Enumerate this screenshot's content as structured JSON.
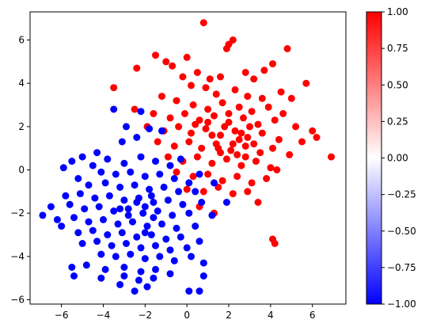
{
  "chart_data": {
    "type": "scatter",
    "title": "",
    "xlabel": "",
    "ylabel": "",
    "xlim": [
      -7.5,
      7.6
    ],
    "ylim": [
      -6.2,
      7.3
    ],
    "x_ticks": [
      -6,
      -4,
      -2,
      0,
      2,
      4,
      6
    ],
    "y_ticks": [
      -6,
      -4,
      -2,
      0,
      2,
      4,
      6
    ],
    "x_tick_labels": [
      "−6",
      "−4",
      "−2",
      "0",
      "2",
      "4",
      "6"
    ],
    "y_tick_labels": [
      "−6",
      "−4",
      "−2",
      "0",
      "2",
      "4",
      "6"
    ],
    "grid": false,
    "colormap": "bwr",
    "colorbar": {
      "range": [
        -1.0,
        1.0
      ],
      "ticks": [
        1.0,
        0.75,
        0.5,
        0.25,
        0.0,
        -0.25,
        -0.5,
        -0.75,
        -1.0
      ],
      "tick_labels": [
        "1.00",
        "0.75",
        "0.50",
        "0.25",
        "0.00",
        "−0.25",
        "−0.50",
        "−0.75",
        "−1.00"
      ],
      "colors": [
        "#0000ff",
        "#ffffff",
        "#ff0000"
      ]
    },
    "series": [
      {
        "class_value": 1,
        "color": "#ff0000",
        "points": [
          [
            0.8,
            6.8
          ],
          [
            2.2,
            6.0
          ],
          [
            2.0,
            5.8
          ],
          [
            1.9,
            5.6
          ],
          [
            -1.5,
            5.3
          ],
          [
            -1.0,
            5.0
          ],
          [
            -0.7,
            4.8
          ],
          [
            0.0,
            5.2
          ],
          [
            0.5,
            4.5
          ],
          [
            1.1,
            4.2
          ],
          [
            1.6,
            4.3
          ],
          [
            2.8,
            4.5
          ],
          [
            3.2,
            4.2
          ],
          [
            4.8,
            5.6
          ],
          [
            4.1,
            4.9
          ],
          [
            3.7,
            4.6
          ],
          [
            -2.4,
            4.7
          ],
          [
            -0.2,
            4.3
          ],
          [
            0.2,
            3.9
          ],
          [
            0.9,
            3.8
          ],
          [
            1.4,
            3.5
          ],
          [
            2.3,
            3.7
          ],
          [
            2.9,
            3.4
          ],
          [
            3.6,
            3.3
          ],
          [
            4.5,
            3.6
          ],
          [
            5.7,
            4.0
          ],
          [
            5.0,
            3.3
          ],
          [
            -3.5,
            3.8
          ],
          [
            -1.2,
            3.4
          ],
          [
            -0.5,
            3.2
          ],
          [
            0.3,
            3.0
          ],
          [
            1.0,
            2.8
          ],
          [
            1.7,
            3.1
          ],
          [
            2.5,
            2.9
          ],
          [
            3.1,
            2.7
          ],
          [
            3.9,
            2.9
          ],
          [
            4.6,
            2.6
          ],
          [
            -2.5,
            2.8
          ],
          [
            -1.6,
            2.6
          ],
          [
            -0.8,
            2.4
          ],
          [
            -0.1,
            2.6
          ],
          [
            0.6,
            2.3
          ],
          [
            1.3,
            2.5
          ],
          [
            2.0,
            2.2
          ],
          [
            2.7,
            2.4
          ],
          [
            3.4,
            2.1
          ],
          [
            4.2,
            2.3
          ],
          [
            5.2,
            2.0
          ],
          [
            6.0,
            1.8
          ],
          [
            -1.9,
            2.0
          ],
          [
            -1.1,
            1.8
          ],
          [
            -0.4,
            2.0
          ],
          [
            0.2,
            1.7
          ],
          [
            0.9,
            1.9
          ],
          [
            1.6,
            1.6
          ],
          [
            2.3,
            1.8
          ],
          [
            2.9,
            1.5
          ],
          [
            3.6,
            1.7
          ],
          [
            4.4,
            1.4
          ],
          [
            5.5,
            1.3
          ],
          [
            6.2,
            1.5
          ],
          [
            -1.4,
            1.3
          ],
          [
            -0.6,
            1.1
          ],
          [
            0.1,
            1.3
          ],
          [
            0.7,
            1.0
          ],
          [
            1.4,
            1.2
          ],
          [
            2.1,
            0.9
          ],
          [
            2.8,
            1.1
          ],
          [
            3.5,
            0.8
          ],
          [
            4.1,
            1.0
          ],
          [
            4.9,
            0.7
          ],
          [
            -0.9,
            0.6
          ],
          [
            -0.2,
            0.4
          ],
          [
            0.5,
            0.6
          ],
          [
            1.2,
            0.3
          ],
          [
            1.9,
            0.5
          ],
          [
            2.6,
            0.2
          ],
          [
            3.3,
            0.4
          ],
          [
            4.0,
            0.1
          ],
          [
            6.9,
            0.6
          ],
          [
            -0.5,
            -0.1
          ],
          [
            0.3,
            -0.3
          ],
          [
            1.0,
            -0.2
          ],
          [
            1.7,
            -0.5
          ],
          [
            2.4,
            -0.3
          ],
          [
            3.1,
            -0.6
          ],
          [
            3.8,
            -0.4
          ],
          [
            4.3,
            0.0
          ],
          [
            0.0,
            -0.9
          ],
          [
            0.8,
            -1.0
          ],
          [
            1.5,
            -0.8
          ],
          [
            2.2,
            -1.1
          ],
          [
            2.9,
            -1.0
          ],
          [
            3.4,
            -1.5
          ],
          [
            0.6,
            -1.7
          ],
          [
            1.3,
            -2.0
          ],
          [
            4.1,
            -3.2
          ],
          [
            4.2,
            -3.4
          ],
          [
            2.5,
            1.4
          ],
          [
            1.8,
            2.0
          ],
          [
            2.2,
            1.2
          ],
          [
            1.5,
            1.0
          ],
          [
            2.6,
            1.7
          ],
          [
            3.0,
            2.0
          ],
          [
            1.2,
            1.6
          ],
          [
            2.0,
            2.6
          ],
          [
            1.6,
            0.8
          ],
          [
            2.4,
            0.7
          ],
          [
            0.4,
            2.1
          ],
          [
            3.2,
            1.2
          ],
          [
            2.8,
            0.6
          ],
          [
            1.0,
            2.2
          ]
        ]
      },
      {
        "class_value": -1,
        "color": "#0000ff",
        "points": [
          [
            -3.5,
            2.8
          ],
          [
            -2.2,
            2.7
          ],
          [
            -2.9,
            2.0
          ],
          [
            -1.8,
            1.9
          ],
          [
            -1.2,
            1.8
          ],
          [
            -3.1,
            1.3
          ],
          [
            -2.4,
            1.5
          ],
          [
            -4.3,
            0.8
          ],
          [
            -5.0,
            0.6
          ],
          [
            -5.5,
            0.4
          ],
          [
            -5.9,
            0.1
          ],
          [
            -3.8,
            0.5
          ],
          [
            -3.0,
            0.3
          ],
          [
            -2.2,
            0.6
          ],
          [
            -1.5,
            0.4
          ],
          [
            -0.8,
            0.2
          ],
          [
            -0.3,
            0.5
          ],
          [
            -4.5,
            0.2
          ],
          [
            -4.1,
            -0.1
          ],
          [
            -3.4,
            -0.2
          ],
          [
            -2.7,
            -0.1
          ],
          [
            -2.0,
            -0.3
          ],
          [
            -1.3,
            -0.2
          ],
          [
            -0.6,
            -0.4
          ],
          [
            0.1,
            -0.6
          ],
          [
            0.6,
            -0.2
          ],
          [
            1.3,
            -0.6
          ],
          [
            -5.2,
            -0.4
          ],
          [
            -4.7,
            -0.7
          ],
          [
            -3.9,
            -0.6
          ],
          [
            -3.2,
            -0.8
          ],
          [
            -2.5,
            -0.7
          ],
          [
            -1.8,
            -0.9
          ],
          [
            -1.1,
            -0.8
          ],
          [
            -0.4,
            -1.0
          ],
          [
            0.4,
            -1.0
          ],
          [
            -5.8,
            -1.2
          ],
          [
            -5.1,
            -1.1
          ],
          [
            -4.4,
            -1.3
          ],
          [
            -3.7,
            -1.2
          ],
          [
            -3.0,
            -1.4
          ],
          [
            -2.3,
            -1.3
          ],
          [
            -1.6,
            -1.5
          ],
          [
            -0.9,
            -1.4
          ],
          [
            -0.2,
            -1.6
          ],
          [
            0.7,
            -1.5
          ],
          [
            1.9,
            -1.5
          ],
          [
            -6.5,
            -1.7
          ],
          [
            -5.6,
            -1.6
          ],
          [
            -4.9,
            -1.8
          ],
          [
            -4.2,
            -1.7
          ],
          [
            -3.5,
            -1.9
          ],
          [
            -2.8,
            -1.8
          ],
          [
            -2.1,
            -2.0
          ],
          [
            -1.4,
            -1.9
          ],
          [
            -0.7,
            -2.1
          ],
          [
            0.1,
            -2.0
          ],
          [
            1.2,
            -2.1
          ],
          [
            -6.9,
            -2.1
          ],
          [
            -6.2,
            -2.3
          ],
          [
            -5.4,
            -2.2
          ],
          [
            -4.7,
            -2.4
          ],
          [
            -4.0,
            -2.3
          ],
          [
            -3.3,
            -2.5
          ],
          [
            -2.6,
            -2.4
          ],
          [
            -1.9,
            -2.6
          ],
          [
            -1.2,
            -2.5
          ],
          [
            -0.5,
            -2.7
          ],
          [
            0.4,
            -2.6
          ],
          [
            -6.0,
            -2.6
          ],
          [
            -5.2,
            -2.9
          ],
          [
            -4.5,
            -2.8
          ],
          [
            -3.8,
            -3.0
          ],
          [
            -3.1,
            -2.9
          ],
          [
            -2.4,
            -3.1
          ],
          [
            -1.7,
            -3.0
          ],
          [
            -1.0,
            -3.2
          ],
          [
            -0.3,
            -3.1
          ],
          [
            0.6,
            -3.3
          ],
          [
            -5.0,
            -3.4
          ],
          [
            -4.3,
            -3.3
          ],
          [
            -3.6,
            -3.5
          ],
          [
            -2.9,
            -3.4
          ],
          [
            -2.2,
            -3.6
          ],
          [
            -1.5,
            -3.5
          ],
          [
            -0.8,
            -3.7
          ],
          [
            0.0,
            -3.6
          ],
          [
            -4.1,
            -3.9
          ],
          [
            -3.4,
            -4.0
          ],
          [
            -2.7,
            -3.9
          ],
          [
            -2.0,
            -4.1
          ],
          [
            -1.3,
            -4.0
          ],
          [
            -0.6,
            -4.2
          ],
          [
            0.2,
            -4.0
          ],
          [
            0.8,
            -4.3
          ],
          [
            -5.5,
            -4.5
          ],
          [
            -4.8,
            -4.4
          ],
          [
            -3.9,
            -4.6
          ],
          [
            -3.0,
            -4.5
          ],
          [
            -2.2,
            -4.7
          ],
          [
            -1.5,
            -4.6
          ],
          [
            -0.8,
            -4.8
          ],
          [
            -5.4,
            -4.9
          ],
          [
            -4.1,
            -5.0
          ],
          [
            -3.0,
            -4.9
          ],
          [
            -2.3,
            -5.1
          ],
          [
            -1.6,
            -5.0
          ],
          [
            -3.2,
            -5.3
          ],
          [
            -2.5,
            -5.6
          ],
          [
            -1.9,
            -5.4
          ],
          [
            0.1,
            -5.6
          ],
          [
            0.6,
            -5.6
          ],
          [
            0.8,
            -4.9
          ],
          [
            -2.0,
            -1.7
          ],
          [
            -2.8,
            -2.1
          ],
          [
            -1.6,
            -2.2
          ],
          [
            -2.4,
            -1.5
          ],
          [
            -3.2,
            -1.8
          ],
          [
            -2.0,
            -2.9
          ],
          [
            -1.7,
            -1.2
          ]
        ]
      }
    ]
  }
}
